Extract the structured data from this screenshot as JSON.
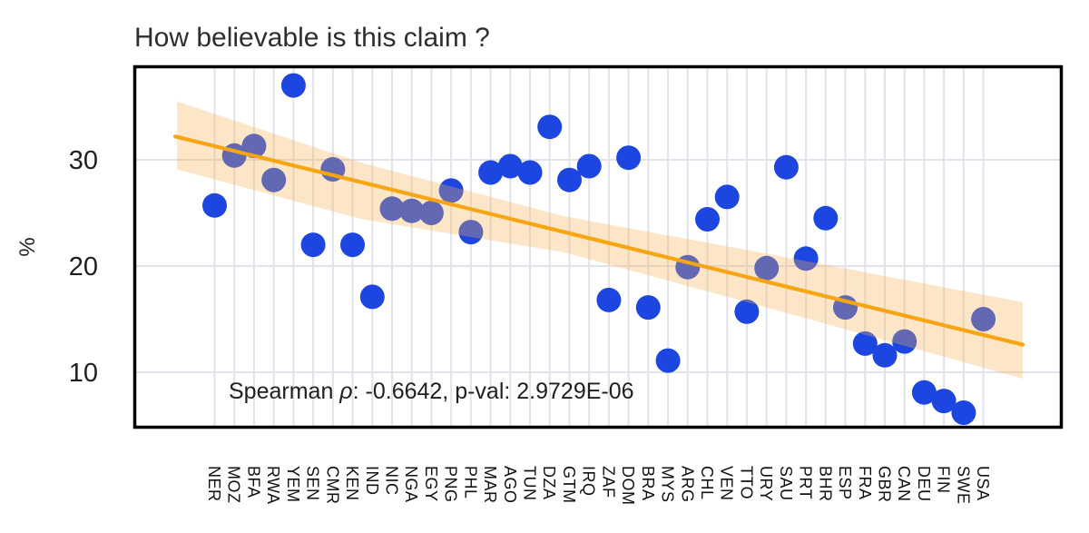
{
  "figure": {
    "title": "How believable is this claim ?"
  },
  "chart_data": {
    "type": "scatter",
    "title": "How believable is this claim ?",
    "xlabel": "",
    "ylabel": "%",
    "categories": [
      "NER",
      "MOZ",
      "BFA",
      "RWA",
      "YEM",
      "SEN",
      "CMR",
      "KEN",
      "IND",
      "NIC",
      "NGA",
      "EGY",
      "PNG",
      "PHL",
      "MAR",
      "AGO",
      "TUN",
      "DZA",
      "GTM",
      "IRQ",
      "ZAF",
      "DOM",
      "BRA",
      "MYS",
      "ARG",
      "CHL",
      "VEN",
      "TTO",
      "URY",
      "SAU",
      "PRT",
      "BHR",
      "ESP",
      "FRA",
      "GBR",
      "CAN",
      "DEU",
      "FIN",
      "SWE",
      "USA"
    ],
    "values": [
      25.7,
      30.4,
      31.3,
      28.1,
      37.0,
      22.0,
      29.1,
      22.0,
      17.1,
      25.4,
      25.2,
      25.0,
      27.1,
      23.2,
      28.8,
      29.4,
      28.8,
      33.1,
      28.1,
      29.4,
      16.8,
      30.2,
      16.1,
      11.1,
      19.9,
      24.4,
      26.5,
      15.7,
      19.8,
      29.3,
      20.7,
      24.5,
      16.1,
      12.7,
      11.6,
      12.9,
      8.1,
      7.3,
      6.2,
      15.0
    ],
    "yticks": [
      10,
      20,
      30
    ],
    "ylim": [
      4.8,
      38.7
    ],
    "grid": true,
    "legend": false,
    "annotation": {
      "full": "Spearman ρ: -0.6642, p-val: 2.9729E-06",
      "prefix": "Spearman ",
      "rho": "ρ",
      "suffix": ": -0.6642, p-val: 2.9729E-06"
    },
    "trend_line": {
      "x_index_start": -2.0,
      "value_start": 32.2,
      "x_index_end": 41.0,
      "value_end": 12.6
    },
    "confidence_band": [
      {
        "x_index": -1.9,
        "upper": 35.5,
        "lower": 29.1
      },
      {
        "x_index": 7.5,
        "upper": 29.7,
        "lower": 24.4
      },
      {
        "x_index": 17.7,
        "upper": 24.7,
        "lower": 21.3
      },
      {
        "x_index": 28.2,
        "upper": 21.1,
        "lower": 16.0
      },
      {
        "x_index": 41.0,
        "upper": 16.6,
        "lower": 9.4
      }
    ],
    "colors": {
      "point": "#1c46df",
      "trend": "#f7a512",
      "band": "#f6b250",
      "band_opacity": 0.32,
      "grid": "#e2e2ec",
      "border": "#000000",
      "text": "#1f1f1f"
    }
  }
}
